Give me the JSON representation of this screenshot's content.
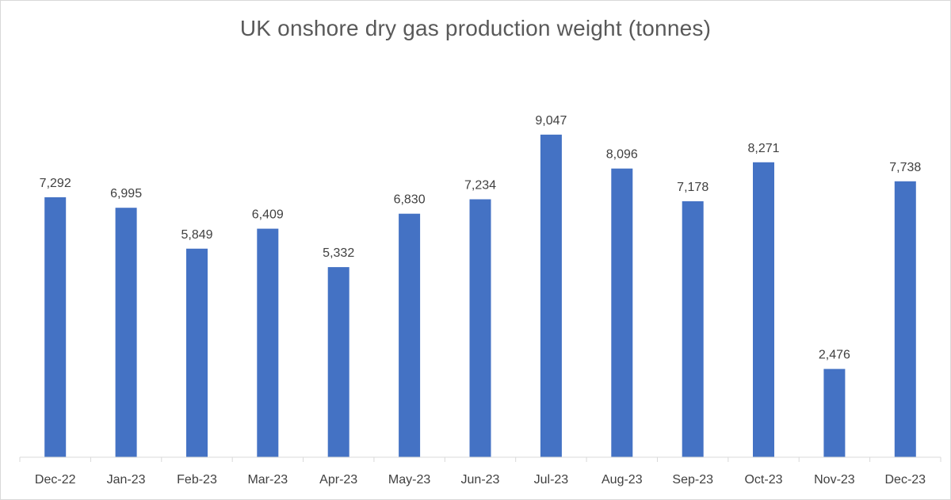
{
  "chart_data": {
    "type": "bar",
    "title": "UK onshore dry gas production weight (tonnes)",
    "xlabel": "",
    "ylabel": "",
    "categories": [
      "Dec-22",
      "Jan-23",
      "Feb-23",
      "Mar-23",
      "Apr-23",
      "May-23",
      "Jun-23",
      "Jul-23",
      "Aug-23",
      "Sep-23",
      "Oct-23",
      "Nov-23",
      "Dec-23"
    ],
    "values": [
      7292,
      6995,
      5849,
      6409,
      5332,
      6830,
      7234,
      9047,
      8096,
      7178,
      8271,
      2476,
      7738
    ],
    "value_labels": [
      "7,292",
      "6,995",
      "5,849",
      "6,409",
      "5,332",
      "6,830",
      "7,234",
      "9,047",
      "8,096",
      "7,178",
      "8,271",
      "2,476",
      "7,738"
    ],
    "ylim": [
      0,
      10000
    ],
    "grid": false,
    "legend": "none",
    "bar_color": "#4472c4",
    "axis_color": "#d9d9d9"
  }
}
